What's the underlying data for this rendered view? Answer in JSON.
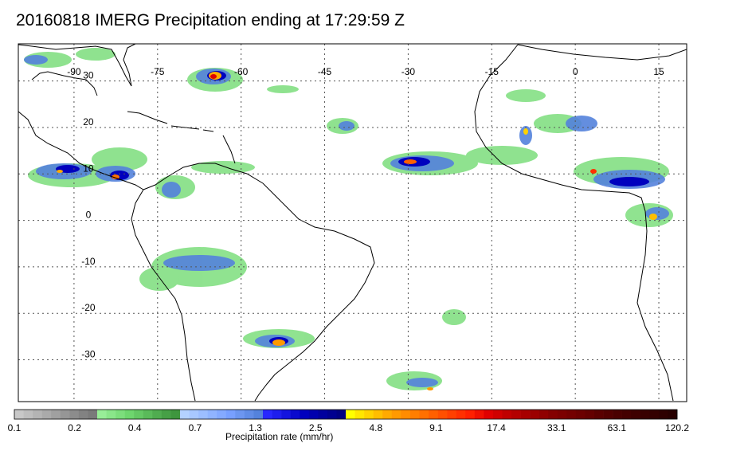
{
  "title": "20160818 IMERG Precipitation ending at 17:29:59 Z",
  "map": {
    "lon_range": [
      -100,
      20
    ],
    "lat_range": [
      -39,
      38
    ],
    "lon_labels": [
      "-90",
      "-75",
      "-60",
      "-45",
      "-30",
      "-15",
      "0",
      "15"
    ],
    "lat_labels": [
      "30",
      "20",
      "10",
      "0",
      "-10",
      "-20",
      "-30"
    ],
    "gridlines": "dotted"
  },
  "colorbar": {
    "caption": "Precipitation rate (mm/hr)",
    "tick_labels": [
      "0.1",
      "0.2",
      "0.4",
      "0.7",
      "1.3",
      "2.5",
      "4.8",
      "9.1",
      "17.4",
      "33.1",
      "63.1",
      "120.2"
    ],
    "colors": [
      "#c8c8c8",
      "#bebebe",
      "#b4b4b4",
      "#aaaaaa",
      "#a0a0a0",
      "#969696",
      "#8c8c8c",
      "#828282",
      "#7a7a7a",
      "#98ee98",
      "#8ae68a",
      "#7cde7c",
      "#6ed66e",
      "#64c864",
      "#5aba5a",
      "#50ac50",
      "#46a046",
      "#3e963e",
      "#b4d2ff",
      "#a8c8ff",
      "#9cbeff",
      "#90b4ff",
      "#84aaff",
      "#78a0ff",
      "#6c96f0",
      "#608ce6",
      "#5482dc",
      "#2828ff",
      "#1e1eee",
      "#1414de",
      "#0a0ace",
      "#0000be",
      "#0000ae",
      "#00009e",
      "#000090",
      "#000082",
      "#ffff00",
      "#ffe600",
      "#ffd200",
      "#ffbe00",
      "#ffaa00",
      "#ff9a00",
      "#ff8c00",
      "#ff7e00",
      "#ff7000",
      "#ff6000",
      "#ff5000",
      "#ff4000",
      "#ff3000",
      "#ff2000",
      "#f01000",
      "#e00000",
      "#d00000",
      "#c00000",
      "#b40000",
      "#a80000",
      "#9c0000",
      "#900000",
      "#840000",
      "#7c0000",
      "#740000",
      "#6c0000",
      "#640000",
      "#5a0000",
      "#520000",
      "#4a0000",
      "#440000",
      "#3e0000",
      "#380000",
      "#340000",
      "#2e0000",
      "#280000"
    ]
  }
}
